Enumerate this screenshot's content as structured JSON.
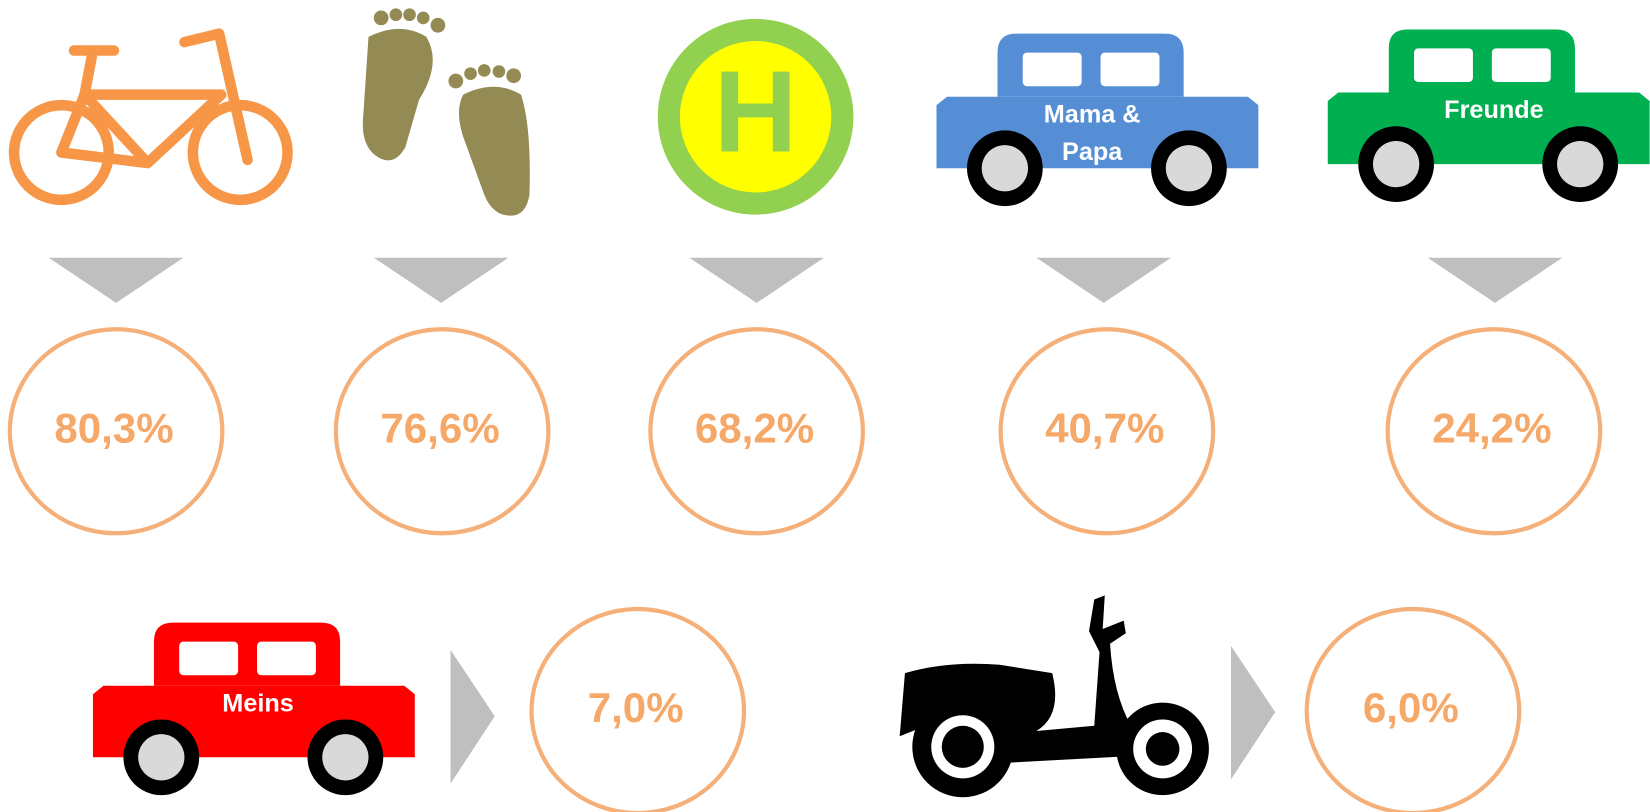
{
  "items": [
    {
      "value": "80,3%"
    },
    {
      "value": "76,6%"
    },
    {
      "value": "68,2%",
      "label": "H"
    },
    {
      "value": "40,7%",
      "label_lines": [
        "Mama &",
        "Papa"
      ]
    },
    {
      "value": "24,2%",
      "label_lines": [
        "Freunde"
      ]
    },
    {
      "value": "7,0%",
      "label_lines": [
        "Meins"
      ]
    },
    {
      "value": "6,0%"
    }
  ]
}
